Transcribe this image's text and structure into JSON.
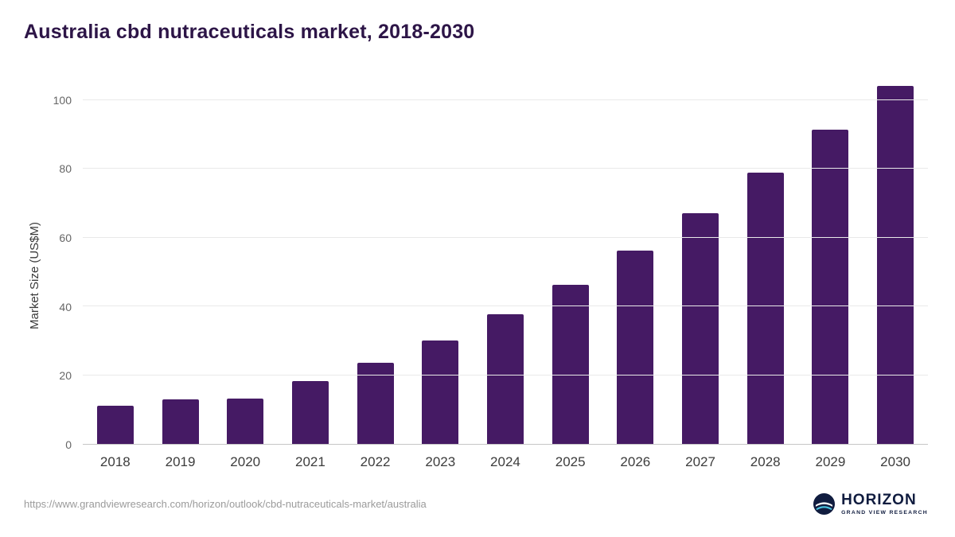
{
  "title": "Australia cbd nutraceuticals market, 2018-2030",
  "chart_data": {
    "type": "bar",
    "title": "Australia cbd nutraceuticals market, 2018-2030",
    "categories": [
      "2018",
      "2019",
      "2020",
      "2021",
      "2022",
      "2023",
      "2024",
      "2025",
      "2026",
      "2027",
      "2028",
      "2029",
      "2030"
    ],
    "values": [
      11.2,
      12.9,
      13.2,
      18.2,
      23.5,
      30.1,
      37.7,
      46.3,
      56.2,
      67.1,
      78.9,
      91.4,
      104.0
    ],
    "xlabel": "",
    "ylabel": "Market Size (US$M)",
    "yticks": [
      0,
      20,
      40,
      60,
      80,
      100
    ],
    "ylim": [
      0,
      108
    ],
    "grid": "horizontal",
    "legend": "none",
    "bar_color": "#451a64"
  },
  "footer": {
    "source_url": "https://www.grandviewresearch.com/horizon/outlook/cbd-nutraceuticals-market/australia",
    "logo_title": "HORIZON",
    "logo_subtitle": "GRAND VIEW RESEARCH"
  },
  "colors": {
    "title": "#2d1547",
    "bar": "#451a64",
    "axis_text": "#666666",
    "grid": "#e9e9e9",
    "url_text": "#9b9b9b",
    "logo_navy": "#101c3f",
    "logo_teal": "#4ac4e0"
  }
}
